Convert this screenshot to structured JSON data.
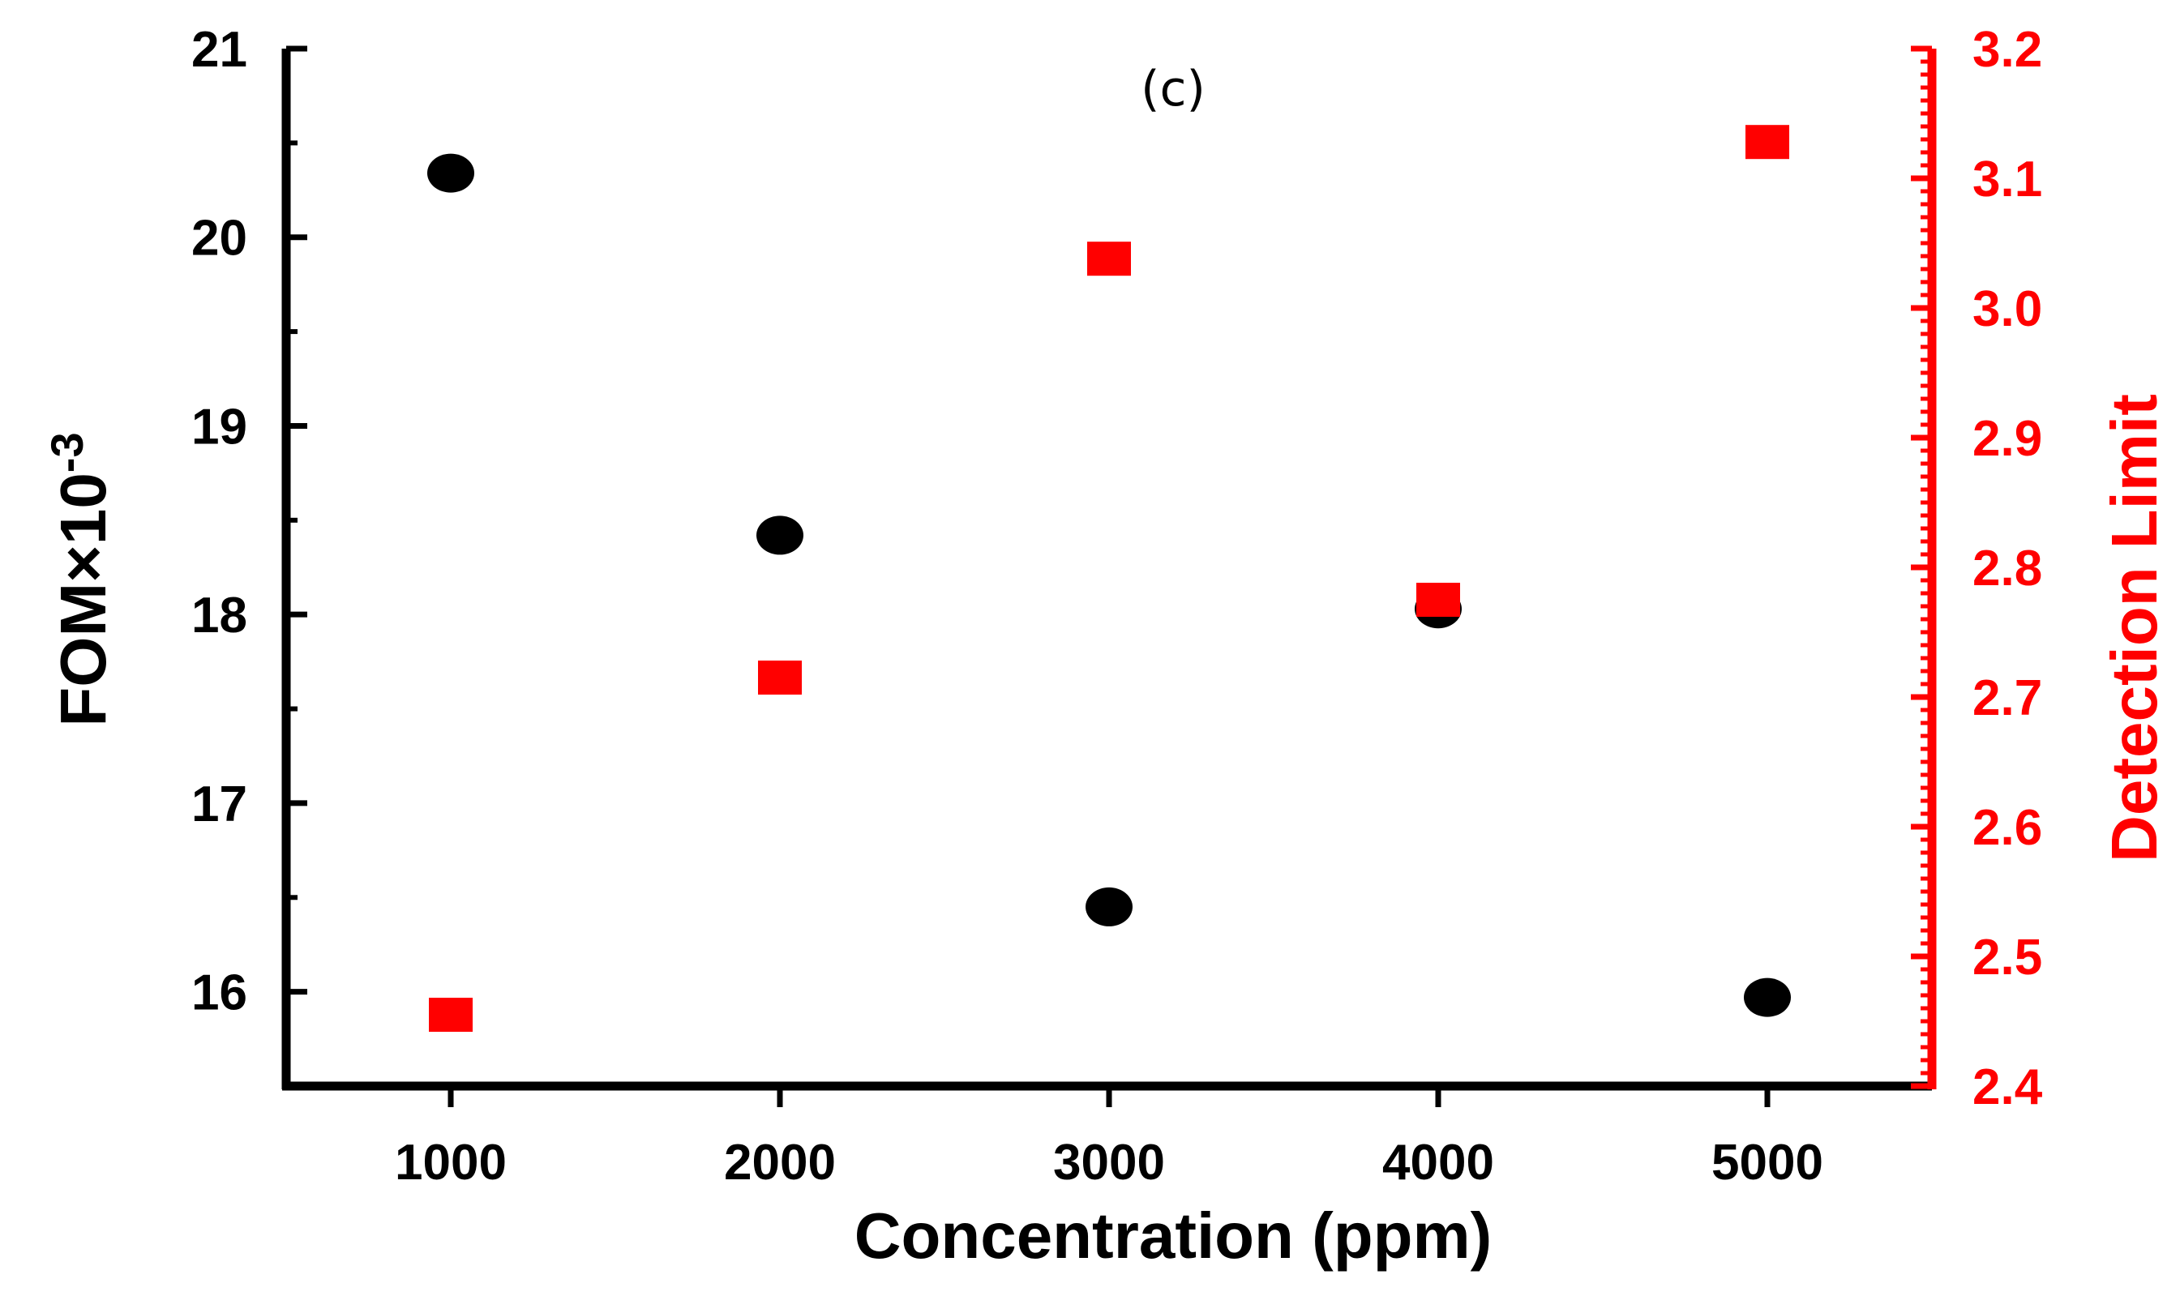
{
  "chart_data": {
    "type": "scatter",
    "panel_label": "(c)",
    "xlabel": "Concentration (ppm)",
    "ylabel_left": {
      "prefix": "FOM×10",
      "sup": "-3"
    },
    "ylabel_right": "Detection Limit",
    "xlim": [
      500,
      5500
    ],
    "ylim_left": [
      15.5,
      21
    ],
    "ylim_right": [
      2.4,
      3.2
    ],
    "x_ticks": [
      1000,
      2000,
      3000,
      4000,
      5000
    ],
    "x_tick_labels": [
      "1000",
      "2000",
      "3000",
      "4000",
      "5000"
    ],
    "y_left_ticks": [
      16,
      17,
      18,
      19,
      20,
      21
    ],
    "y_left_tick_labels": [
      "16",
      "17",
      "18",
      "19",
      "20",
      "21"
    ],
    "y_right_ticks": [
      2.4,
      2.5,
      2.6,
      2.7,
      2.8,
      2.9,
      3.0,
      3.1,
      3.2
    ],
    "y_right_tick_labels": [
      "2.4",
      "2.5",
      "2.6",
      "2.7",
      "2.8",
      "2.9",
      "3.0",
      "3.1",
      "3.2"
    ],
    "series": [
      {
        "name": "FOM",
        "axis": "left",
        "marker": "circle",
        "color": "#000000",
        "x": [
          1000,
          2000,
          3000,
          4000,
          5000
        ],
        "y": [
          20.34,
          18.42,
          16.45,
          18.03,
          15.97
        ]
      },
      {
        "name": "Detection Limit",
        "axis": "right",
        "marker": "square",
        "color": "#ff0000",
        "x": [
          1000,
          2000,
          3000,
          4000,
          5000
        ],
        "y": [
          2.455,
          2.715,
          3.038,
          2.775,
          3.128
        ]
      }
    ]
  }
}
